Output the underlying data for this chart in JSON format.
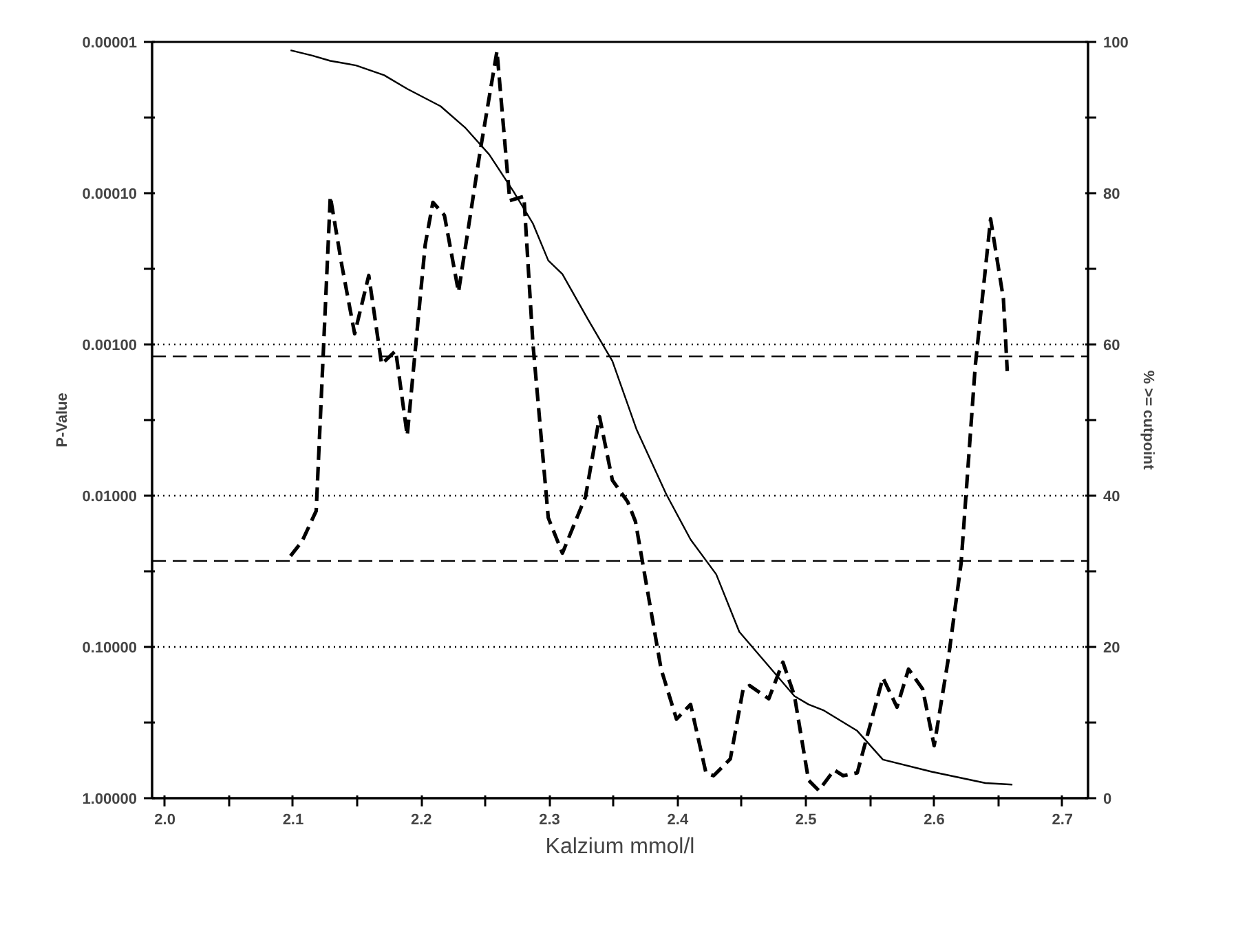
{
  "chart_data": {
    "type": "line",
    "xlabel": "Kalzium mmol/l",
    "ylabel": "P-Value",
    "y2label": "% >= cutpoint",
    "log": "y",
    "grid": false,
    "marker": "none",
    "xlim": [
      1.99,
      2.72
    ],
    "xticks": [
      {
        "value": 2.0,
        "label": "2.0"
      },
      {
        "value": 2.05,
        "label": null
      },
      {
        "value": 2.1,
        "label": "2.1"
      },
      {
        "value": 2.15,
        "label": null
      },
      {
        "value": 2.2,
        "label": "2.2"
      },
      {
        "value": 2.25,
        "label": null
      },
      {
        "value": 2.3,
        "label": "2.3"
      },
      {
        "value": 2.35,
        "label": null
      },
      {
        "value": 2.4,
        "label": "2.4"
      },
      {
        "value": 2.45,
        "label": null
      },
      {
        "value": 2.5,
        "label": "2.5"
      },
      {
        "value": 2.55,
        "label": null
      },
      {
        "value": 2.6,
        "label": "2.6"
      },
      {
        "value": 2.65,
        "label": null
      },
      {
        "value": 2.7,
        "label": "2.7"
      }
    ],
    "ylim": [
      1,
      1e-05
    ],
    "yticks": [
      {
        "value": 1e-05,
        "label": "0.00001"
      },
      {
        "value": 3.16e-05,
        "label": null
      },
      {
        "value": 0.0001,
        "label": "0.00010"
      },
      {
        "value": 0.000316,
        "label": null
      },
      {
        "value": 0.001,
        "label": "0.00100"
      },
      {
        "value": 0.00316,
        "label": null
      },
      {
        "value": 0.01,
        "label": "0.01000"
      },
      {
        "value": 0.0316,
        "label": null
      },
      {
        "value": 0.1,
        "label": "0.10000"
      },
      {
        "value": 0.316,
        "label": null
      },
      {
        "value": 1,
        "label": "1.00000"
      }
    ],
    "y2lim": [
      0,
      100
    ],
    "y2ticks": [
      0,
      {
        "value": 10,
        "label": null
      },
      20,
      {
        "value": 30,
        "label": null
      },
      40,
      {
        "value": 50,
        "label": null
      },
      60,
      {
        "value": 70,
        "label": null
      },
      80,
      {
        "value": 90,
        "label": null
      },
      100
    ],
    "ref_lines": [
      {
        "axis": "y",
        "value": 0.001,
        "color": "#000000",
        "line_style": "dotted"
      },
      {
        "axis": "y",
        "value": 0.01,
        "color": "#000000",
        "line_style": "dotted"
      },
      {
        "axis": "y",
        "value": 0.1,
        "color": "#000000",
        "line_style": "dotted"
      },
      {
        "axis": "y",
        "value": 0.0012,
        "color": "#000000",
        "line_style": "dashed"
      },
      {
        "axis": "y",
        "value": 0.027,
        "color": "#000000",
        "line_style": "dashed"
      }
    ],
    "series": [
      {
        "color": "#000000",
        "line_style": "dashed",
        "x": [
          2.098,
          2.107,
          2.118,
          2.129,
          2.138,
          2.148,
          2.159,
          2.169,
          2.18,
          2.189,
          2.203,
          2.209,
          2.218,
          2.229,
          2.246,
          2.259,
          2.269,
          2.28,
          2.287,
          2.299,
          2.31,
          2.328,
          2.339,
          2.349,
          2.361,
          2.367,
          2.387,
          2.399,
          2.41,
          2.422,
          2.428,
          2.441,
          2.451,
          2.456,
          2.471,
          2.482,
          2.491,
          2.502,
          2.51,
          2.522,
          2.529,
          2.54,
          2.56,
          2.571,
          2.58,
          2.591,
          2.6,
          2.611,
          2.621,
          2.632,
          2.644,
          2.654,
          2.657
        ],
        "values": [
          0.025,
          0.02,
          0.0126,
          0.000105,
          0.0003,
          0.00085,
          0.00035,
          0.00135,
          0.0011,
          0.004,
          0.00022,
          0.000115,
          0.00014,
          0.00045,
          5.2e-05,
          1.15e-05,
          0.000112,
          0.000105,
          0.00098,
          0.014,
          0.024,
          0.0102,
          0.003,
          0.0079,
          0.011,
          0.0148,
          0.14,
          0.3,
          0.24,
          0.68,
          0.71,
          0.55,
          0.19,
          0.18,
          0.22,
          0.126,
          0.21,
          0.76,
          0.89,
          0.65,
          0.71,
          0.68,
          0.16,
          0.25,
          0.14,
          0.19,
          0.45,
          0.12,
          0.028,
          0.0014,
          0.000148,
          0.0005,
          0.0015
        ]
      },
      {
        "color": "#000000",
        "line_style": "solid",
        "axis": "y2",
        "x": [
          2.098,
          2.115,
          2.129,
          2.149,
          2.171,
          2.189,
          2.215,
          2.234,
          2.253,
          2.272,
          2.287,
          2.299,
          2.31,
          2.33,
          2.349,
          2.368,
          2.391,
          2.41,
          2.43,
          2.448,
          2.491,
          2.502,
          2.514,
          2.54,
          2.56,
          2.598,
          2.64,
          2.661
        ],
        "values": [
          98.9,
          98.2,
          97.5,
          96.9,
          95.6,
          93.8,
          91.5,
          88.7,
          85.1,
          80.2,
          76.0,
          71.1,
          69.3,
          63.3,
          57.8,
          48.7,
          40.2,
          34.2,
          29.6,
          22.0,
          13.5,
          12.4,
          11.6,
          8.9,
          5.1,
          3.5,
          2.0,
          1.8
        ]
      }
    ]
  }
}
